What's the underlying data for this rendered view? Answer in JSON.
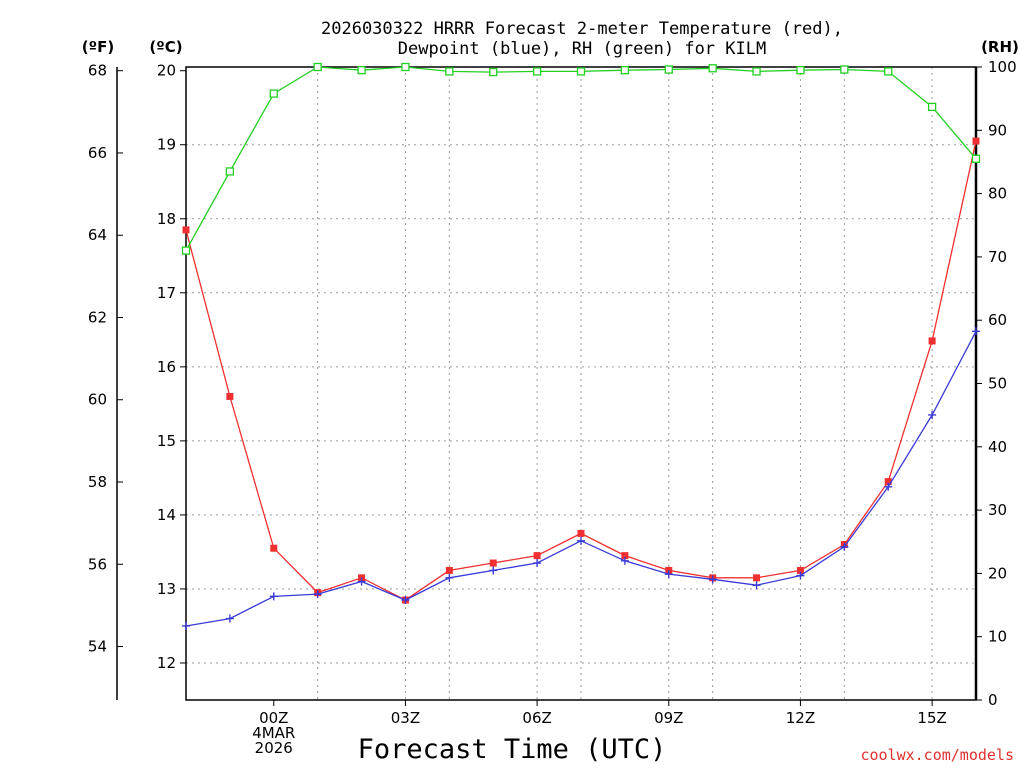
{
  "chart_data": {
    "type": "line",
    "title": [
      "2026030322 HRRR Forecast 2-meter Temperature (red),",
      "Dewpoint (blue), RH (green) for KILM"
    ],
    "xlabel": "Forecast Time (UTC)",
    "credit": "coolwx.com/models",
    "unit_labels": {
      "fahrenheit": "(ºF)",
      "celsius": "(ºC)",
      "rh": "(RH)"
    },
    "x_range": [
      -2,
      16
    ],
    "x_ticks": [
      {
        "x": 0,
        "lines": [
          "00Z",
          "4MAR",
          "2026"
        ]
      },
      {
        "x": 3,
        "lines": [
          "03Z"
        ]
      },
      {
        "x": 6,
        "lines": [
          "06Z"
        ]
      },
      {
        "x": 9,
        "lines": [
          "09Z"
        ]
      },
      {
        "x": 12,
        "lines": [
          "12Z"
        ]
      },
      {
        "x": 15,
        "lines": [
          "15Z"
        ]
      }
    ],
    "x_grid": [
      1,
      3,
      4,
      6,
      7,
      9,
      10,
      12,
      13,
      15
    ],
    "celsius_axis": {
      "range": [
        11.5,
        20.05
      ],
      "ticks": [
        12,
        13,
        14,
        15,
        16,
        17,
        18,
        19,
        20
      ]
    },
    "fahrenheit_axis": {
      "range": [
        52.7,
        68.09
      ],
      "ticks": [
        54,
        56,
        58,
        60,
        62,
        64,
        66,
        68
      ]
    },
    "rh_axis": {
      "range": [
        0,
        100
      ],
      "ticks": [
        0,
        10,
        20,
        30,
        40,
        50,
        60,
        70,
        80,
        90,
        100
      ]
    },
    "h_grid_celsius": [
      12,
      13,
      14,
      15,
      16,
      17,
      18,
      19
    ],
    "series": [
      {
        "name": "Temperature",
        "axis": "celsius",
        "color": "#f03030",
        "marker": "filled-square",
        "x": [
          -2,
          -1,
          0,
          1,
          2,
          3,
          4,
          5,
          6,
          7,
          8,
          9,
          10,
          11,
          12,
          13,
          14,
          15,
          16
        ],
        "values": [
          17.85,
          15.6,
          13.55,
          12.95,
          13.15,
          12.85,
          13.25,
          13.35,
          13.45,
          13.75,
          13.45,
          13.25,
          13.15,
          13.15,
          13.25,
          13.6,
          14.45,
          16.35,
          19.05
        ]
      },
      {
        "name": "Dewpoint",
        "axis": "celsius",
        "color": "#3a3ad8",
        "marker": "plus",
        "x": [
          -2,
          -1,
          0,
          1,
          2,
          3,
          4,
          5,
          6,
          7,
          8,
          9,
          10,
          11,
          12,
          13,
          14,
          15,
          16
        ],
        "values": [
          12.5,
          12.6,
          12.9,
          12.93,
          13.1,
          12.85,
          13.15,
          13.25,
          13.35,
          13.65,
          13.38,
          13.2,
          13.13,
          13.05,
          13.18,
          13.57,
          14.38,
          15.35,
          16.48
        ]
      },
      {
        "name": "RH",
        "axis": "rh",
        "color": "#22d022",
        "marker": "open-square",
        "x": [
          -2,
          -1,
          0,
          1,
          2,
          3,
          4,
          5,
          6,
          7,
          8,
          9,
          10,
          11,
          12,
          13,
          14,
          15,
          16
        ],
        "values": [
          71,
          83.5,
          95.8,
          100,
          99.5,
          100,
          99.3,
          99.2,
          99.3,
          99.3,
          99.5,
          99.6,
          99.8,
          99.3,
          99.5,
          99.6,
          99.3,
          93.7,
          85.5
        ]
      }
    ]
  }
}
